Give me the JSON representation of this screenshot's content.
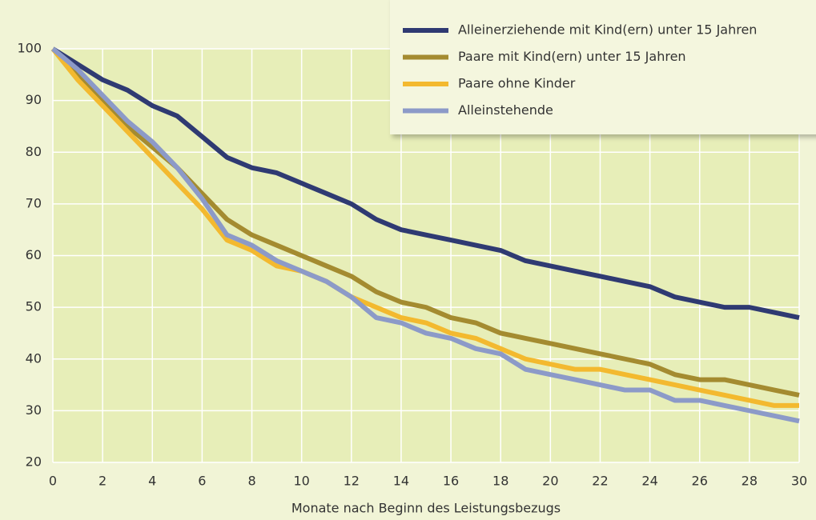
{
  "chart_data": {
    "type": "line",
    "x": [
      0,
      1,
      2,
      3,
      4,
      5,
      6,
      7,
      8,
      9,
      10,
      11,
      12,
      13,
      14,
      15,
      16,
      17,
      18,
      19,
      20,
      21,
      22,
      23,
      24,
      25,
      26,
      27,
      28,
      29,
      30
    ],
    "series": [
      {
        "name": "Alleinerziehende mit Kind(ern) unter 15 Jahren",
        "color": "#2f3a72",
        "values": [
          100,
          97,
          94,
          92,
          89,
          87,
          83,
          79,
          77,
          76,
          74,
          72,
          70,
          67,
          65,
          64,
          63,
          62,
          61,
          59,
          58,
          57,
          56,
          55,
          54,
          52,
          51,
          50,
          50,
          49,
          48
        ]
      },
      {
        "name": "Paare mit Kind(ern) unter 15 Jahren",
        "color": "#a48b30",
        "values": [
          100,
          95,
          90,
          85,
          81,
          77,
          72,
          67,
          64,
          62,
          60,
          58,
          56,
          53,
          51,
          50,
          48,
          47,
          45,
          44,
          43,
          42,
          41,
          40,
          39,
          37,
          36,
          36,
          35,
          34,
          33
        ]
      },
      {
        "name": "Paare ohne Kinder",
        "color": "#f3b92f",
        "values": [
          100,
          94,
          89,
          84,
          79,
          74,
          69,
          63,
          61,
          58,
          57,
          55,
          52,
          50,
          48,
          47,
          45,
          44,
          42,
          40,
          39,
          38,
          38,
          37,
          36,
          35,
          34,
          33,
          32,
          31,
          31
        ]
      },
      {
        "name": "Alleinstehende",
        "color": "#8c9ac8",
        "values": [
          100,
          96,
          91,
          86,
          82,
          77,
          71,
          64,
          62,
          59,
          57,
          55,
          52,
          48,
          47,
          45,
          44,
          42,
          41,
          38,
          37,
          36,
          35,
          34,
          34,
          32,
          32,
          31,
          30,
          29,
          28
        ]
      }
    ],
    "x_label": "Monate nach Beginn des Leistungsbezugs",
    "xlim": [
      0,
      30
    ],
    "xticks": [
      0,
      2,
      4,
      6,
      8,
      10,
      12,
      14,
      16,
      18,
      20,
      22,
      24,
      26,
      28,
      30
    ],
    "ylim": [
      20,
      100
    ],
    "yticks": [
      20,
      30,
      40,
      50,
      60,
      70,
      80,
      90,
      100
    ],
    "grid": true,
    "legend": "top-right"
  }
}
